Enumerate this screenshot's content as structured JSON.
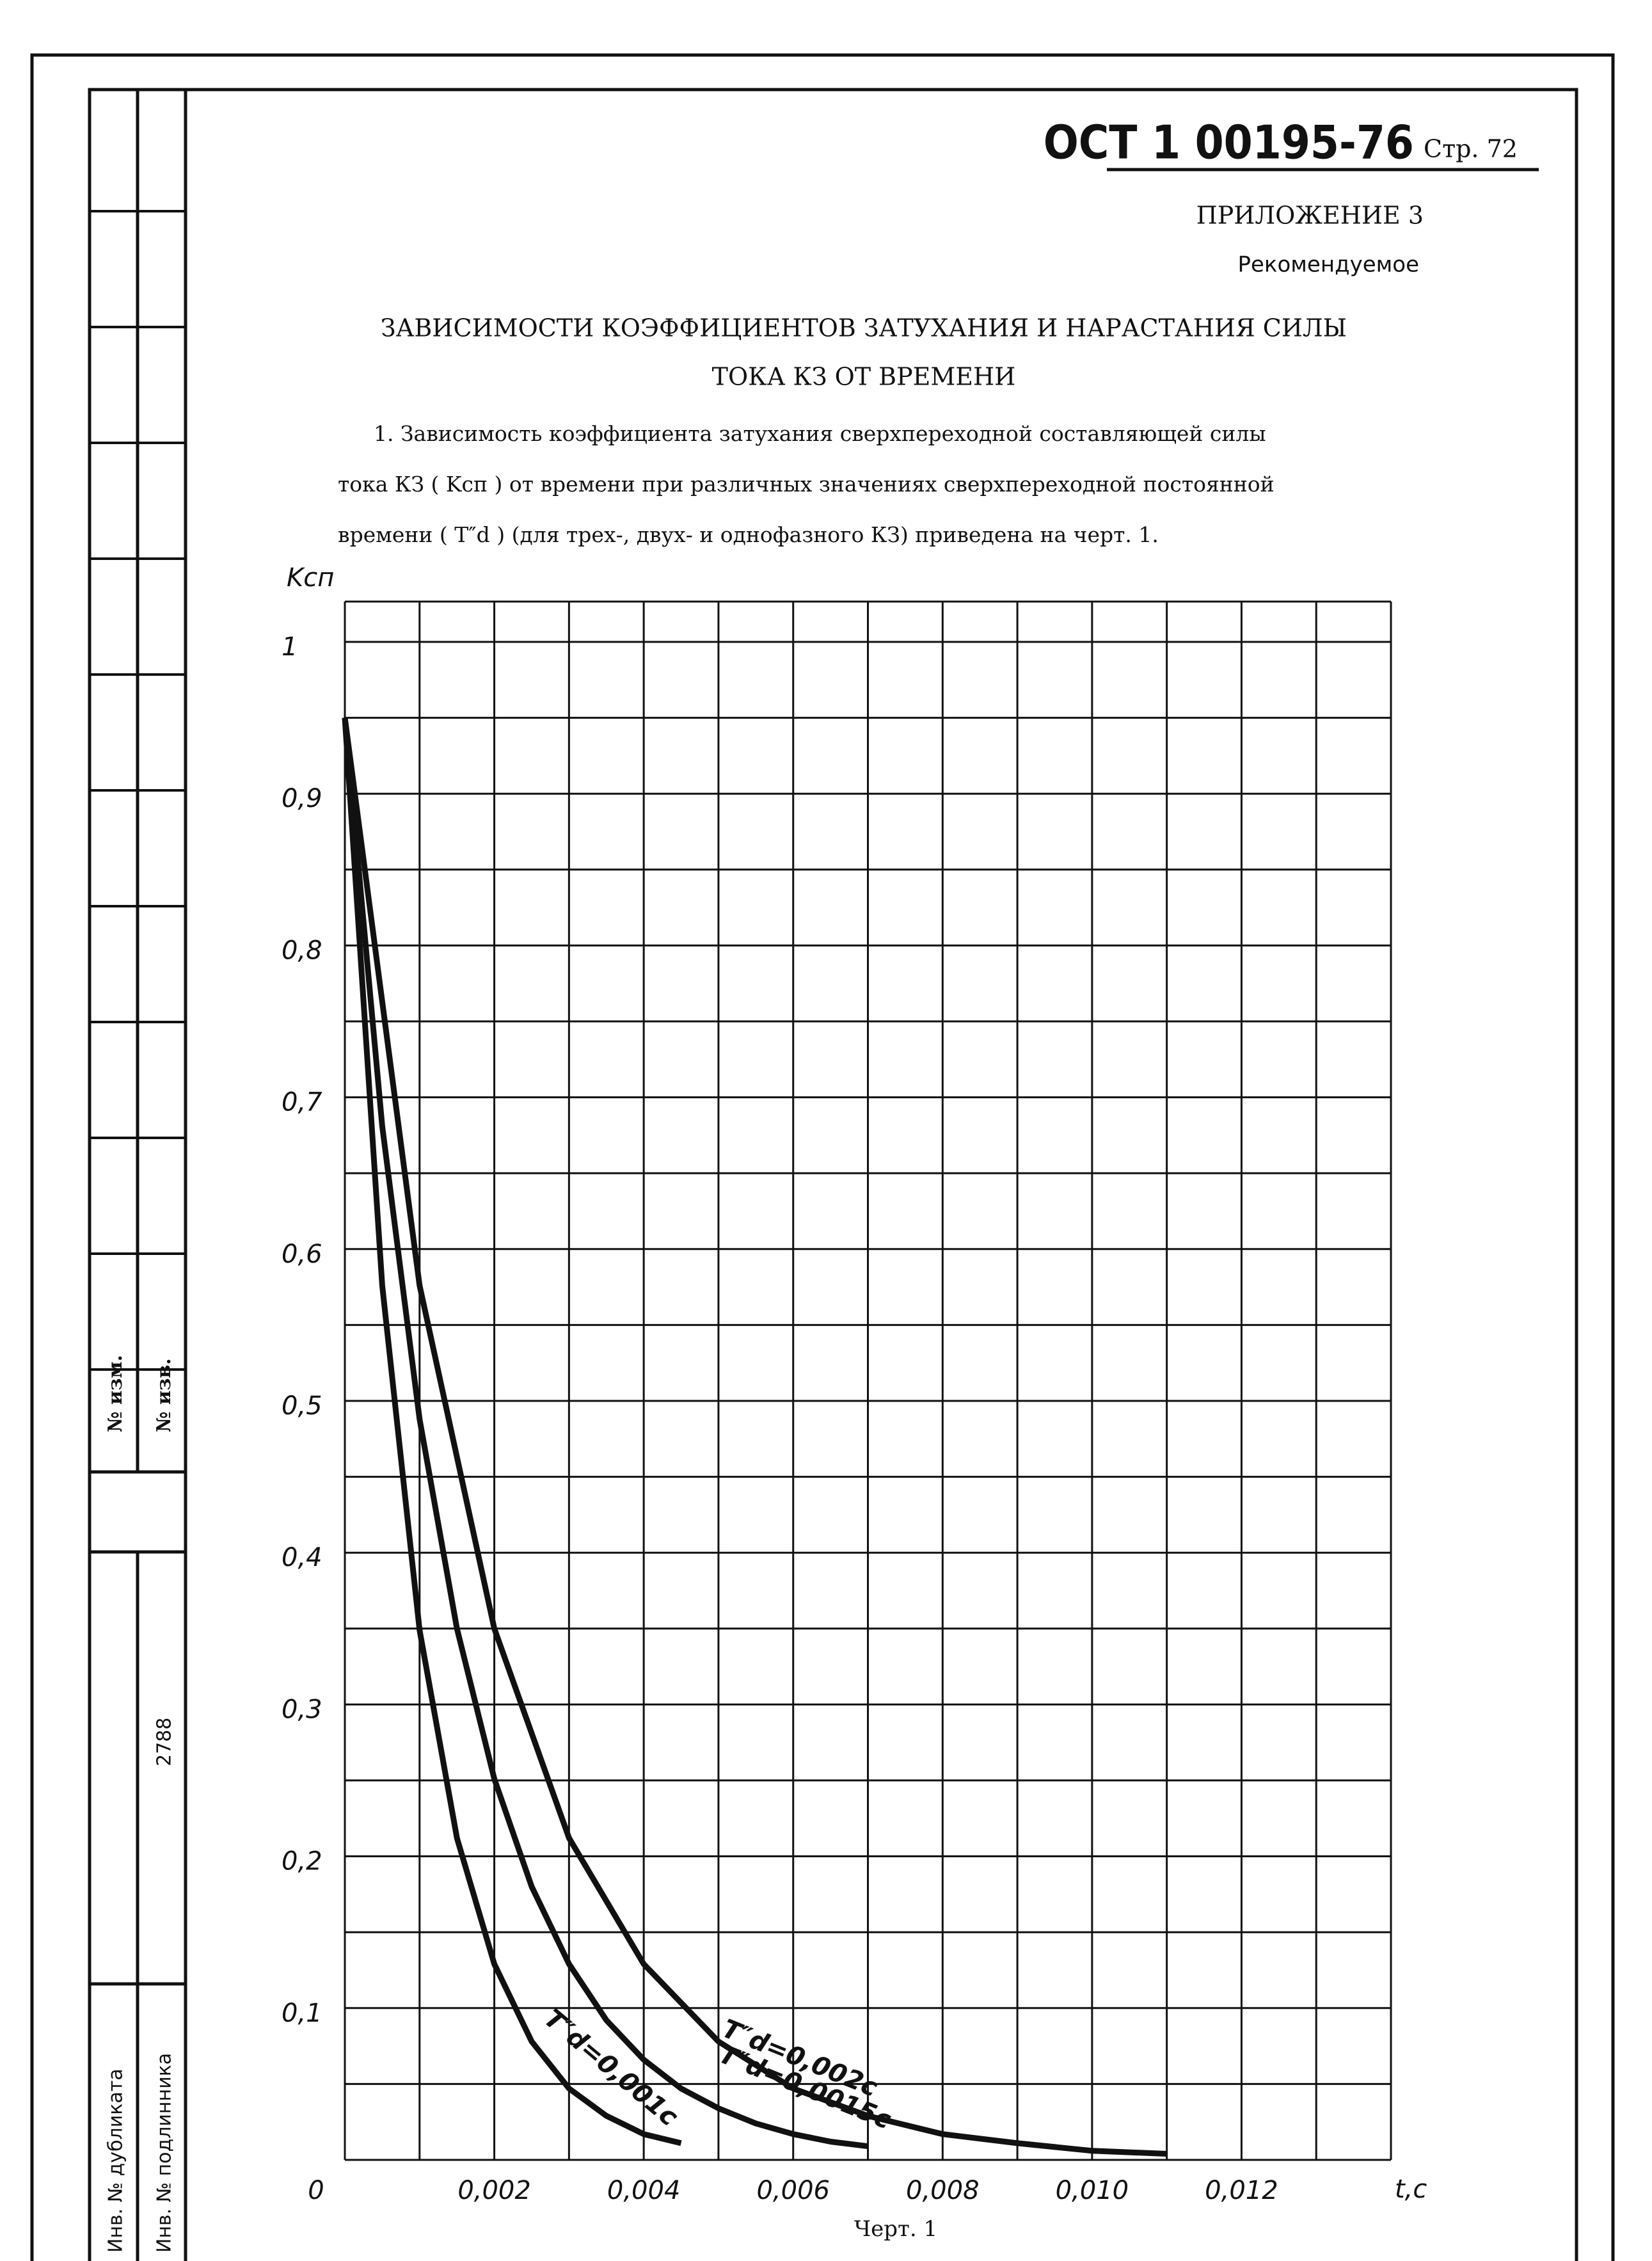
{
  "header": {
    "code": "ОСТ 1 00195-76",
    "page": "Стр. 72",
    "appendix": "ПРИЛОЖЕНИЕ 3",
    "status": "Рекомендуемое"
  },
  "title": [
    "ЗАВИСИМОСТИ КОЭФФИЦИЕНТОВ ЗАТУХАНИЯ И НАРАСТАНИЯ СИЛЫ",
    "ТОКА КЗ ОТ ВРЕМЕНИ"
  ],
  "paragraph": [
    "1. Зависимость коэффициента затухания сверхпереходной составляющей силы",
    "тока КЗ ( Kсп ) от времени при различных значениях сверхпереходной постоянной",
    "времени ( T″d ) (для трех-, двух- и однофазного КЗ) приведена на черт. 1."
  ],
  "stamp": [
    "№ изм.",
    "№ изв.",
    "2788",
    "Инв. № дубликата",
    "Инв. № подлинника"
  ],
  "chart_data": {
    "type": "line",
    "y_label": "Kсп",
    "x_label": "t,c",
    "caption": "Черт. 1",
    "xlim": [
      0,
      0.014
    ],
    "ylim": [
      0,
      1
    ],
    "grid": true,
    "xticks": [
      0,
      {
        "value": 0.002,
        "label": "0,002"
      },
      {
        "value": 0.004,
        "label": "0,004"
      },
      {
        "value": 0.006,
        "label": "0,006"
      },
      {
        "value": 0.008,
        "label": "0,008"
      },
      {
        "value": 0.01,
        "label": "0,010"
      },
      {
        "value": 0.012,
        "label": "0,012"
      }
    ],
    "yticks": [
      {
        "value": 0.1,
        "label": "0,1"
      },
      {
        "value": 0.2,
        "label": "0,2"
      },
      {
        "value": 0.3,
        "label": "0,3"
      },
      {
        "value": 0.4,
        "label": "0,4"
      },
      {
        "value": 0.5,
        "label": "0,5"
      },
      {
        "value": 0.6,
        "label": "0,6"
      },
      {
        "value": 0.7,
        "label": "0,7"
      },
      {
        "value": 0.8,
        "label": "0,8"
      },
      {
        "value": 0.9,
        "label": "0,9"
      },
      1
    ],
    "xgrid": [
      0,
      0.001,
      0.002,
      0.003,
      0.004,
      0.005,
      0.006,
      0.007,
      0.008,
      0.009,
      0.01,
      0.011,
      0.012,
      0.013,
      0.014
    ],
    "ygrid": [
      0,
      0.05,
      0.1,
      0.15,
      0.2,
      0.25,
      0.3,
      0.35,
      0.4,
      0.45,
      0.5,
      0.55,
      0.6,
      0.65,
      0.7,
      0.75,
      0.8,
      0.85,
      0.9,
      0.95,
      1
    ],
    "series": [
      {
        "name": "T″d=0,001c",
        "color": "#111111",
        "x": [
          0,
          0.0005,
          0.001,
          0.0015,
          0.002,
          0.0025,
          0.003,
          0.0035,
          0.004,
          0.0045
        ],
        "values": [
          0.95,
          0.576,
          0.349,
          0.212,
          0.129,
          0.078,
          0.047,
          0.029,
          0.017,
          0.011
        ]
      },
      {
        "name": "T″d=0,0015c",
        "color": "#111111",
        "x": [
          0,
          0.0005,
          0.001,
          0.0015,
          0.002,
          0.0025,
          0.003,
          0.0035,
          0.004,
          0.0045,
          0.005,
          0.0055,
          0.006,
          0.0065,
          0.007
        ],
        "values": [
          0.95,
          0.681,
          0.488,
          0.35,
          0.251,
          0.18,
          0.129,
          0.092,
          0.066,
          0.047,
          0.034,
          0.024,
          0.017,
          0.012,
          0.009
        ]
      },
      {
        "name": "T″d=0,002c",
        "color": "#111111",
        "x": [
          0,
          0.001,
          0.002,
          0.003,
          0.004,
          0.005,
          0.006,
          0.007,
          0.008,
          0.009,
          0.01,
          0.011
        ],
        "values": [
          0.95,
          0.576,
          0.35,
          0.212,
          0.129,
          0.078,
          0.047,
          0.029,
          0.017,
          0.011,
          0.006,
          0.004
        ]
      }
    ]
  }
}
